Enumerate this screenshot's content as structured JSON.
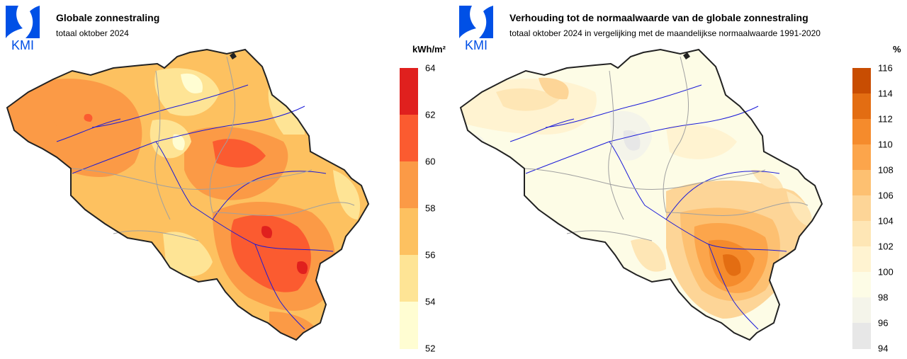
{
  "logo_text": "KMI",
  "panels": [
    {
      "title": "Globale zonnestraling",
      "subtitle": "totaal oktober 2024",
      "unit": "kWh/m²",
      "legend": {
        "ticks": [
          "64",
          "62",
          "60",
          "58",
          "56",
          "54",
          "52"
        ],
        "colors": [
          "#e0201e",
          "#fb5b30",
          "#fb9a46",
          "#fdc160",
          "#fee495",
          "#fffdd2"
        ]
      }
    },
    {
      "title": "Verhouding tot de normaalwaarde van de globale zonnestraling",
      "subtitle": "totaal oktober 2024 in vergelijking met de maandelijkse normaalwaarde 1991-2020",
      "unit": "%",
      "legend": {
        "ticks": [
          "116",
          "114",
          "112",
          "110",
          "108",
          "106",
          "104",
          "102",
          "100",
          "98",
          "96",
          "94"
        ],
        "colors": [
          "#c84d02",
          "#e36d12",
          "#f58b2c",
          "#fca54b",
          "#fdc071",
          "#fdd597",
          "#fee6b5",
          "#fff3d1",
          "#fdfce6",
          "#f4f4ea",
          "#e7e7e7"
        ]
      }
    }
  ],
  "chart_data": [
    {
      "type": "heatmap",
      "title": "Globale zonnestraling",
      "subtitle": "totaal oktober 2024",
      "unit": "kWh/m²",
      "scale_range": [
        52,
        64
      ],
      "class_breaks": [
        52,
        54,
        56,
        58,
        60,
        62,
        64
      ]
    },
    {
      "type": "heatmap",
      "title": "Verhouding tot de normaalwaarde van de globale zonnestraling",
      "subtitle": "totaal oktober 2024 in vergelijking met de maandelijkse normaalwaarde 1991-2020",
      "unit": "%",
      "scale_range": [
        94,
        116
      ],
      "class_breaks": [
        94,
        96,
        98,
        100,
        102,
        104,
        106,
        108,
        110,
        112,
        114,
        116
      ]
    }
  ]
}
